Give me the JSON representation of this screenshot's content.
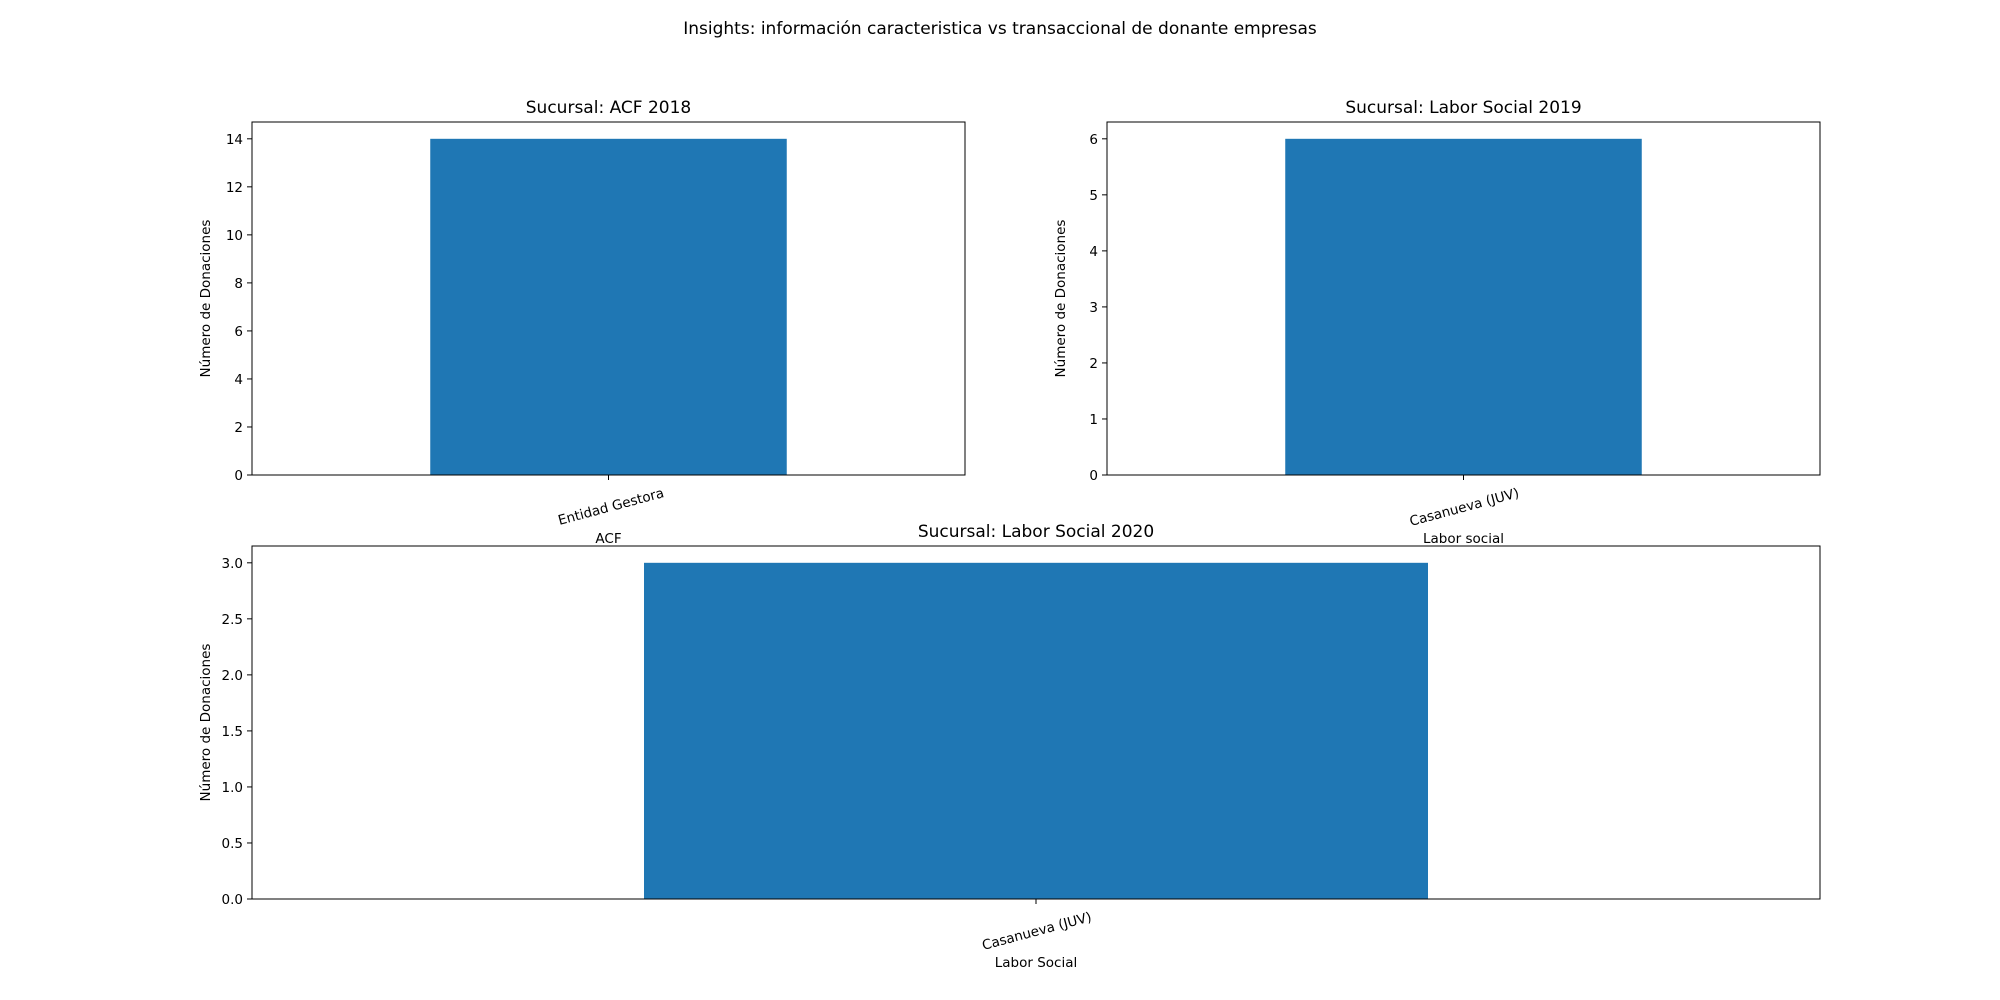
{
  "figure": {
    "title": "Insights: información caracteristica vs transaccional de donante empresas"
  },
  "colors": {
    "bar": "#1f77b4",
    "axes": "#000000",
    "background": "#ffffff"
  },
  "chart_data": [
    {
      "type": "bar",
      "title": "Sucursal: ACF 2018",
      "categories": [
        "Entidad Gestora"
      ],
      "values": [
        14
      ],
      "xlabel": "ACF",
      "ylabel": "Número de Donaciones",
      "ylim": [
        0,
        14.7
      ],
      "yticks": [
        0,
        2,
        4,
        6,
        8,
        10,
        12,
        14
      ],
      "ytick_labels": [
        "0",
        "2",
        "4",
        "6",
        "8",
        "10",
        "12",
        "14"
      ],
      "grid": false,
      "legend": "none"
    },
    {
      "type": "bar",
      "title": "Sucursal: Labor Social 2019",
      "categories": [
        "Casanueva (JUV)"
      ],
      "values": [
        6
      ],
      "xlabel": "Labor social",
      "ylabel": "Número de Donaciones",
      "ylim": [
        0,
        6.3
      ],
      "yticks": [
        0,
        1,
        2,
        3,
        4,
        5,
        6
      ],
      "ytick_labels": [
        "0",
        "1",
        "2",
        "3",
        "4",
        "5",
        "6"
      ],
      "grid": false,
      "legend": "none"
    },
    {
      "type": "bar",
      "title": "Sucursal: Labor Social 2020",
      "categories": [
        "Casanueva (JUV)"
      ],
      "values": [
        3
      ],
      "xlabel": "Labor Social",
      "ylabel": "Número de Donaciones",
      "ylim": [
        0,
        3.15
      ],
      "yticks": [
        0,
        0.5,
        1,
        1.5,
        2,
        2.5,
        3
      ],
      "ytick_labels": [
        "0.0",
        "0.5",
        "1.0",
        "1.5",
        "2.0",
        "2.5",
        "3.0"
      ],
      "grid": false,
      "legend": "none"
    }
  ]
}
